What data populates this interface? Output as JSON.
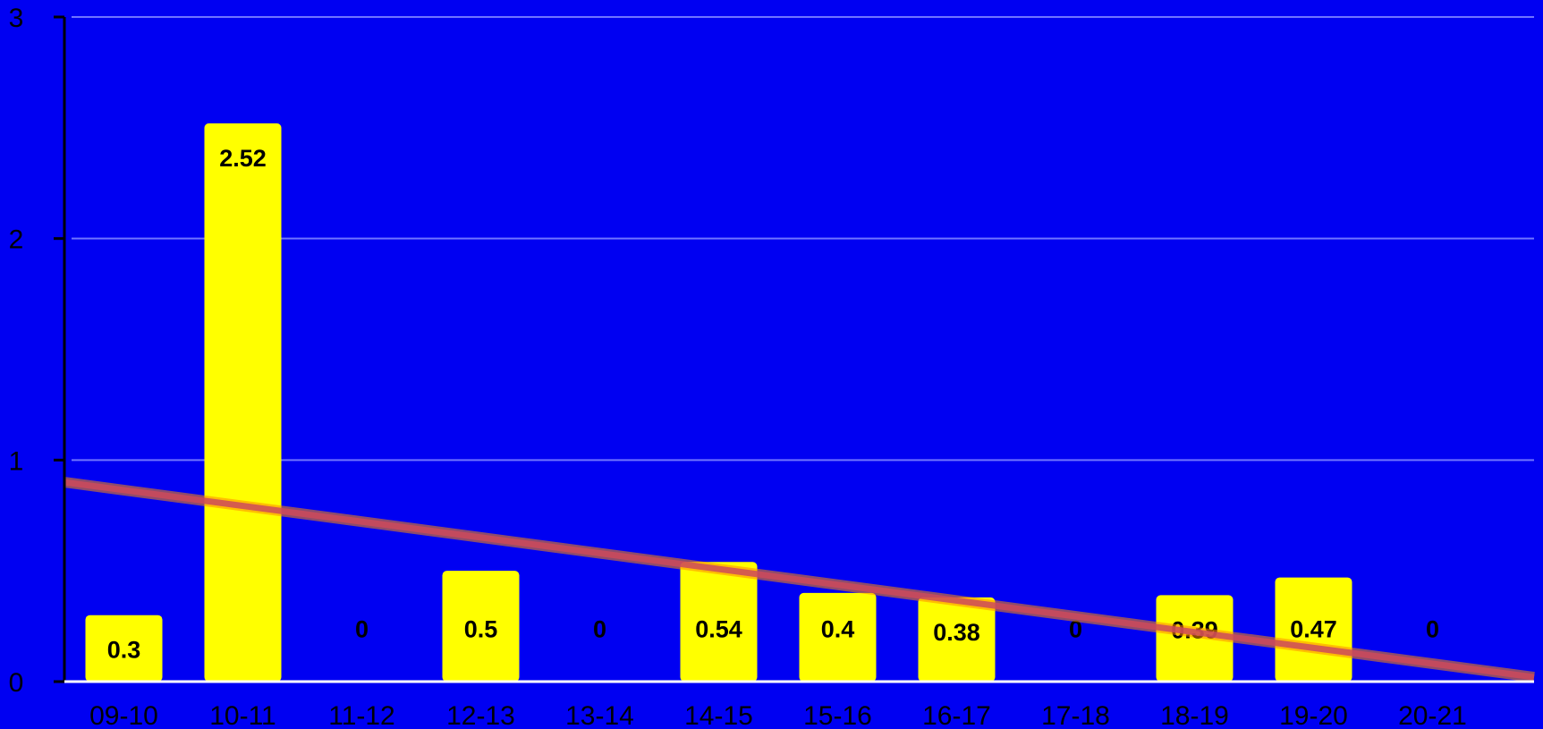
{
  "chart_data": {
    "type": "bar",
    "categories": [
      "09-10",
      "10-11",
      "11-12",
      "12-13",
      "13-14",
      "14-15",
      "15-16",
      "16-17",
      "17-18",
      "18-19",
      "19-20",
      "20-21"
    ],
    "series": [
      {
        "values": [
          0.3,
          2.52,
          0,
          0.5,
          0,
          0.54,
          0.4,
          0.38,
          0,
          0.39,
          0.47,
          0
        ]
      }
    ],
    "trendline": {
      "start": 0.9,
      "end": 0.02
    },
    "yticks": [
      "0",
      "1",
      "2",
      "3"
    ],
    "ylim": [
      0,
      3
    ],
    "grid": true,
    "title": "",
    "xlabel": "",
    "ylabel": "",
    "colors": {
      "background": "#0000f2",
      "bar": "#ffff00",
      "trendline": "#cc4a5c",
      "trendline_glow": "#ff8a00",
      "grid": "#6f74ff",
      "axis": "#000000",
      "baseline": "#ffffff"
    }
  }
}
